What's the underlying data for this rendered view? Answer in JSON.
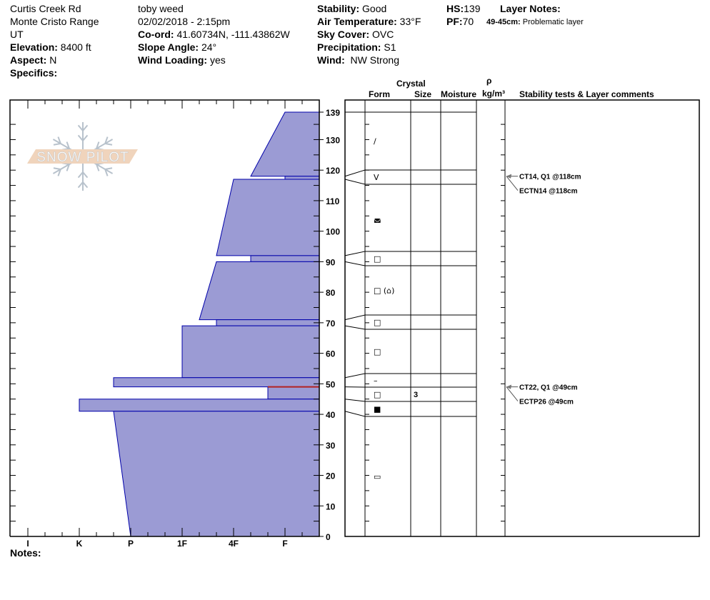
{
  "site": {
    "location": "Curtis Creek Rd",
    "range": "Monte Cristo Range",
    "state": "UT",
    "elevation_label": "Elevation:",
    "elevation": "8400 ft",
    "aspect_label": "Aspect:",
    "aspect": "N",
    "specifics_label": "Specifics:"
  },
  "observer": {
    "name": "toby weed",
    "datetime": "02/02/2018 - 2:15pm",
    "coord_label": "Co-ord:",
    "coord": "41.60734N, -111.43862W",
    "slope_label": "Slope Angle:",
    "slope": "24°",
    "wind_loading_label": "Wind Loading:",
    "wind_loading": "yes"
  },
  "conditions": {
    "stability_label": "Stability:",
    "stability": "Good",
    "air_temp_label": "Air Temperature:",
    "air_temp": "33°F",
    "sky_label": "Sky Cover:",
    "sky": "OVC",
    "precip_label": "Precipitation:",
    "precip": "S1",
    "wind_label": "Wind:",
    "wind": "NW Strong"
  },
  "depth": {
    "hs_label": "HS:",
    "hs": "139",
    "pf_label": "PF:",
    "pf": "70"
  },
  "layer_notes": {
    "title": "Layer Notes:",
    "range": "49-45cm:",
    "text": "Problematic layer"
  },
  "columns": {
    "crystal": "Crystal",
    "form": "Form",
    "size": "Size",
    "moisture": "Moisture",
    "rho": "ρ",
    "density_unit": "kg/m³",
    "comments": "Stability tests & Layer comments"
  },
  "notes_label": "Notes:",
  "logo_text": "SNOW PILOT",
  "colors": {
    "layer_fill": "#9b9bd4",
    "layer_stroke": "#0000aa",
    "weak_layer": "#b22222",
    "logo_orange": "#f0d4bc",
    "logo_gray": "#b8c2cc"
  },
  "chart_data": {
    "type": "snow-profile",
    "y_axis": {
      "range": [
        0,
        139
      ],
      "ticks": [
        "0",
        "10",
        "20",
        "30",
        "40",
        "50",
        "60",
        "70",
        "80",
        "90",
        "100",
        "110",
        "120",
        "130",
        "139"
      ]
    },
    "x_axis": {
      "ticks": [
        "I",
        "K",
        "P",
        "1F",
        "4F",
        "F"
      ],
      "direction": "harder-left"
    },
    "layers": [
      {
        "top": 139,
        "bottom": 118,
        "hardness_top": "F",
        "hardness_bottom": "4F-",
        "form": "/",
        "size": ""
      },
      {
        "top": 118,
        "bottom": 117,
        "hardness_top": "F",
        "hardness_bottom": "F",
        "form": "V",
        "size": ""
      },
      {
        "top": 117,
        "bottom": 92,
        "hardness_top": "4F",
        "hardness_bottom": "4F+",
        "form": "◛",
        "size": ""
      },
      {
        "top": 92,
        "bottom": 90,
        "hardness_top": "4F-",
        "hardness_bottom": "4F-",
        "form": "□",
        "size": ""
      },
      {
        "top": 90,
        "bottom": 71,
        "hardness_top": "4F+",
        "hardness_bottom": "1F-",
        "form": "□ (⌂)",
        "size": ""
      },
      {
        "top": 71,
        "bottom": 69,
        "hardness_top": "4F+",
        "hardness_bottom": "4F+",
        "form": "□",
        "size": ""
      },
      {
        "top": 69,
        "bottom": 52,
        "hardness_top": "1F",
        "hardness_bottom": "1F",
        "form": "□",
        "size": ""
      },
      {
        "top": 52,
        "bottom": 49,
        "hardness_top": "P+",
        "hardness_bottom": "P+",
        "form": "–",
        "size": ""
      },
      {
        "top": 49,
        "bottom": 45,
        "hardness_top": "F+",
        "hardness_bottom": "F+",
        "form": "□",
        "size": "3"
      },
      {
        "top": 45,
        "bottom": 41,
        "hardness_top": "K",
        "hardness_bottom": "K",
        "form": "■",
        "size": ""
      },
      {
        "top": 41,
        "bottom": 0,
        "hardness_top": "P+",
        "hardness_bottom": "P",
        "form": "▭",
        "size": ""
      }
    ],
    "weak_layer_depth": 49,
    "stability_tests": [
      {
        "depth": 118,
        "text": "CT14, Q1 @118cm"
      },
      {
        "depth": 118,
        "text": "ECTN14 @118cm"
      },
      {
        "depth": 49,
        "text": "CT22, Q1 @49cm"
      },
      {
        "depth": 49,
        "text": "ECTP26 @49cm"
      }
    ]
  }
}
